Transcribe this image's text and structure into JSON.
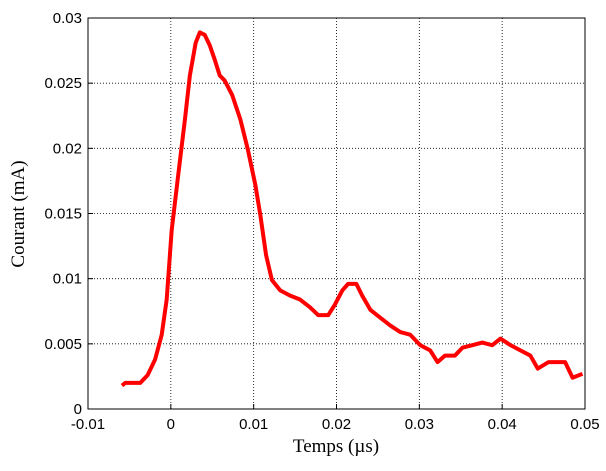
{
  "chart_data": {
    "type": "line",
    "xlabel": "Temps  (µs)",
    "ylabel": "Courant  (mA)",
    "x": [
      -0.0059,
      -0.0055,
      -0.0037,
      -0.0028,
      -0.0019,
      -0.0011,
      -0.0005,
      0.0001,
      0.0009,
      0.0017,
      0.0023,
      0.003,
      0.0035,
      0.0041,
      0.0047,
      0.0053,
      0.0059,
      0.0065,
      0.0074,
      0.0084,
      0.0093,
      0.0102,
      0.0108,
      0.0115,
      0.0122,
      0.0132,
      0.0144,
      0.0156,
      0.0168,
      0.0178,
      0.019,
      0.0198,
      0.0207,
      0.0214,
      0.0224,
      0.0231,
      0.0241,
      0.0253,
      0.0265,
      0.0277,
      0.0289,
      0.0301,
      0.0313,
      0.0322,
      0.0331,
      0.0343,
      0.0352,
      0.0364,
      0.0376,
      0.0388,
      0.0398,
      0.041,
      0.0422,
      0.0434,
      0.0443,
      0.0456,
      0.0476,
      0.0485,
      0.0497
    ],
    "series": [
      {
        "color": "#ff0000",
        "values": [
          0.0018,
          0.002,
          0.002,
          0.0026,
          0.0038,
          0.0057,
          0.0084,
          0.0137,
          0.018,
          0.0222,
          0.0256,
          0.0281,
          0.0289,
          0.0287,
          0.0279,
          0.0268,
          0.0256,
          0.0252,
          0.0241,
          0.0222,
          0.0199,
          0.0172,
          0.0149,
          0.0118,
          0.0099,
          0.0091,
          0.0087,
          0.0084,
          0.0078,
          0.0072,
          0.0072,
          0.008,
          0.0091,
          0.0096,
          0.0096,
          0.0087,
          0.0076,
          0.007,
          0.0064,
          0.0059,
          0.0057,
          0.0049,
          0.0045,
          0.0036,
          0.0041,
          0.0041,
          0.0047,
          0.0049,
          0.0051,
          0.0049,
          0.0054,
          0.0049,
          0.0045,
          0.0041,
          0.0031,
          0.0036,
          0.0036,
          0.0024,
          0.0027
        ]
      }
    ],
    "xlim": [
      -0.01,
      0.05
    ],
    "xticks": [
      -0.01,
      0,
      0.01,
      0.02,
      0.03,
      0.04,
      0.05
    ],
    "ylim": [
      0,
      0.03
    ],
    "yticks": [
      0,
      0.005,
      0.01,
      0.015,
      0.02,
      0.025,
      0.03
    ],
    "grid": true
  }
}
